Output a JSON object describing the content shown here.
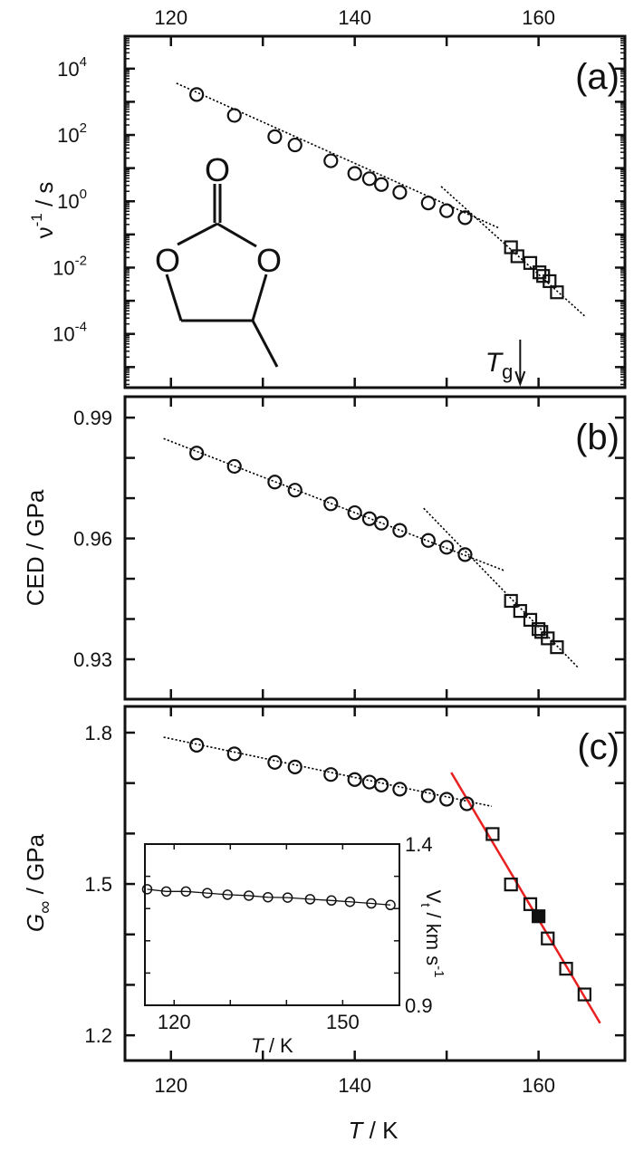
{
  "x_axis": {
    "label": "T",
    "unit": " / K",
    "ticks": [
      120,
      130,
      140,
      150,
      160
    ],
    "tick_labels": [
      "120",
      "140",
      "160"
    ],
    "tick_label_values": [
      120,
      140,
      160
    ],
    "xlim": [
      115,
      169.4
    ]
  },
  "molecule": {
    "atoms": [
      "O",
      "O",
      "O"
    ]
  },
  "chart_data": [
    {
      "type": "scatter",
      "panel_label": "(a)",
      "ylabel": {
        "main": "ν",
        "sup": "-1",
        "rest": " / s"
      },
      "yscale": "log",
      "ylim": [
        2.4e-06,
        95000.0
      ],
      "ytick_labels": [
        {
          "value": 10000.0,
          "base": "10",
          "exp": "4"
        },
        {
          "value": 100.0,
          "base": "10",
          "exp": "2"
        },
        {
          "value": 1,
          "base": "10",
          "exp": "0"
        },
        {
          "value": 0.01,
          "base": "10",
          "exp": "-2"
        },
        {
          "value": 0.0001,
          "base": "10",
          "exp": "-4"
        }
      ],
      "annotation": {
        "text": "T",
        "sub": "g",
        "x": 158.0
      },
      "series": [
        {
          "marker": "circle",
          "x": [
            122.8,
            126.9,
            131.3,
            133.5,
            137.4,
            140.0,
            141.6,
            142.9,
            144.9,
            148.0,
            150.0,
            152.0
          ],
          "y": [
            1660,
            389,
            89,
            50,
            16.6,
            6.9,
            4.8,
            3.2,
            1.86,
            0.89,
            0.52,
            0.32
          ]
        },
        {
          "marker": "square",
          "x": [
            157.0,
            157.7,
            159.1,
            160.1,
            160.5,
            161.2,
            162.0
          ],
          "y": [
            0.041,
            0.022,
            0.0138,
            0.0072,
            0.0056,
            0.0039,
            0.0018
          ]
        }
      ],
      "fits": [
        {
          "style": "dotted",
          "color": "#000000",
          "x": [
            120.6,
            155.8
          ],
          "y": [
            3630,
            0.151
          ]
        },
        {
          "style": "dotted",
          "color": "#000000",
          "x": [
            149.4,
            165.0
          ],
          "y": [
            2.8,
            0.00035
          ]
        }
      ]
    },
    {
      "type": "scatter",
      "panel_label": "(b)",
      "ylabel": {
        "main": "CED / GPa"
      },
      "yscale": "linear",
      "ylim": [
        0.9201,
        0.9952
      ],
      "yticks": [
        0.93,
        0.94,
        0.95,
        0.96,
        0.97,
        0.98,
        0.99
      ],
      "ytick_labels": [
        {
          "value": 0.99,
          "base": "0.99"
        },
        {
          "value": 0.96,
          "base": "0.96"
        },
        {
          "value": 0.93,
          "base": "0.93"
        }
      ],
      "series": [
        {
          "marker": "circle",
          "x": [
            122.8,
            126.9,
            131.3,
            133.5,
            137.4,
            140.0,
            141.6,
            142.9,
            144.9,
            148.0,
            150.0,
            152.0
          ],
          "y": [
            0.9812,
            0.9779,
            0.974,
            0.972,
            0.9686,
            0.9664,
            0.9649,
            0.9638,
            0.962,
            0.9595,
            0.9578,
            0.956
          ]
        },
        {
          "marker": "square",
          "x": [
            157.0,
            158.0,
            159.1,
            160.0,
            160.3,
            161.0,
            162.0
          ],
          "y": [
            0.9445,
            0.942,
            0.9398,
            0.9375,
            0.9368,
            0.9352,
            0.933
          ]
        }
      ],
      "fits": [
        {
          "style": "dotted",
          "color": "#000000",
          "x": [
            119.2,
            156.3
          ],
          "y": [
            0.9848,
            0.952
          ]
        },
        {
          "style": "dotted",
          "color": "#000000",
          "x": [
            147.5,
            164.4
          ],
          "y": [
            0.9675,
            0.9277
          ]
        }
      ]
    },
    {
      "type": "scatter",
      "panel_label": "(c)",
      "ylabel": {
        "main": "G",
        "sub": "∞",
        "rest": " / GPa"
      },
      "yscale": "linear",
      "ylim": [
        1.15,
        1.852
      ],
      "yticks": [
        1.2,
        1.3,
        1.4,
        1.5,
        1.6,
        1.7,
        1.8
      ],
      "ytick_labels": [
        {
          "value": 1.8,
          "base": "1.8"
        },
        {
          "value": 1.5,
          "base": "1.5"
        },
        {
          "value": 1.2,
          "base": "1.2"
        }
      ],
      "series": [
        {
          "marker": "circle",
          "x": [
            122.8,
            126.9,
            131.3,
            133.5,
            137.4,
            140.0,
            141.6,
            142.9,
            144.9,
            148.0,
            150.0,
            152.2
          ],
          "y": [
            1.775,
            1.758,
            1.741,
            1.732,
            1.717,
            1.707,
            1.702,
            1.696,
            1.688,
            1.675,
            1.668,
            1.659
          ]
        },
        {
          "marker": "square",
          "x": [
            155.0,
            157.0,
            159.1,
            161.0,
            163.0,
            165.0
          ],
          "y": [
            1.599,
            1.499,
            1.46,
            1.392,
            1.332,
            1.281
          ]
        },
        {
          "marker": "square-filled",
          "x": [
            160.0
          ],
          "y": [
            1.436
          ]
        }
      ],
      "fits": [
        {
          "style": "dotted",
          "color": "#000000",
          "x": [
            119.2,
            154.9
          ],
          "y": [
            1.791,
            1.654
          ]
        },
        {
          "style": "solid",
          "color": "#e8201f",
          "x": [
            150.5,
            166.7
          ],
          "y": [
            1.721,
            1.224
          ]
        }
      ]
    },
    {
      "type": "line",
      "role": "inset",
      "xlabel": {
        "main": "T",
        "rest": " / K"
      },
      "xlim": [
        114.8,
        160.1
      ],
      "xticks": [
        120,
        130,
        140,
        150
      ],
      "xtick_labels": [
        "120",
        "150"
      ],
      "xtick_label_values": [
        120,
        150
      ],
      "ylabel": {
        "main": "V",
        "sub": "t",
        "rest": " / km s",
        "sup": "-1"
      },
      "ylim": [
        0.9,
        1.4
      ],
      "yticks": [
        1.0,
        1.1,
        1.2,
        1.3
      ],
      "ytick_labels": [
        {
          "value": 1.4,
          "base": "1.4"
        },
        {
          "value": 0.9,
          "base": "0.9"
        }
      ],
      "series": [
        {
          "marker": "circle-line",
          "x": [
            115.2,
            118.6,
            122.1,
            125.9,
            129.5,
            133.3,
            136.7,
            140.2,
            144.2,
            148.0,
            151.3,
            155.1,
            158.5
          ],
          "y": [
            1.26,
            1.253,
            1.253,
            1.248,
            1.243,
            1.24,
            1.235,
            1.234,
            1.229,
            1.225,
            1.221,
            1.216,
            1.211
          ]
        }
      ]
    }
  ]
}
